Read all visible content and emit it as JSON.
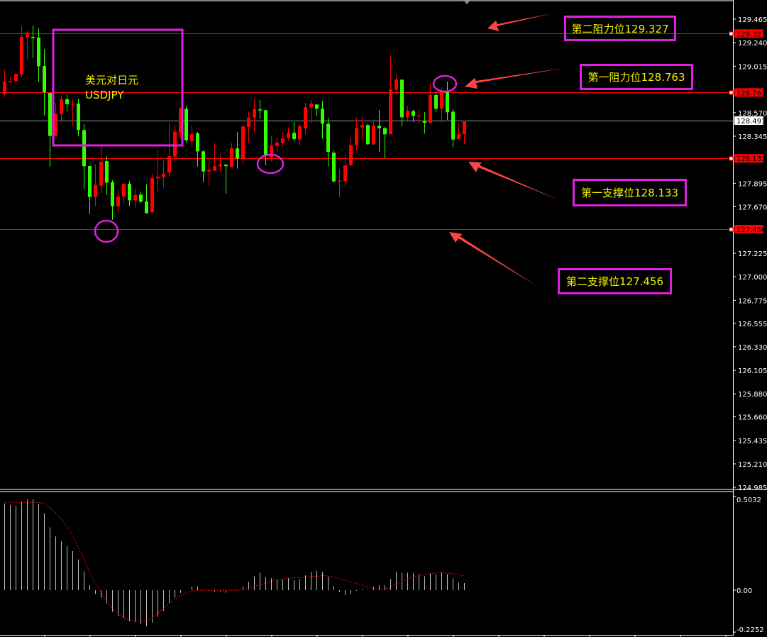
{
  "chart_data": [
    {
      "type": "candlestick",
      "title": "美元对日元",
      "symbol": "USDJPY",
      "ylim": [
        124.985,
        129.465
      ],
      "y_ticks": [
        "129.465",
        "129.240",
        "129.015",
        "128.570",
        "128.345",
        "127.895",
        "127.670",
        "127.225",
        "127.000",
        "126.775",
        "126.555",
        "126.330",
        "126.105",
        "125.880",
        "125.660",
        "125.435",
        "125.210",
        "124.985"
      ],
      "bullish_color": "#ff0000",
      "bearish_color": "#33ff00",
      "current_price": {
        "value": 128.491,
        "label": "128.491",
        "color": "#8a94a6"
      },
      "levels": [
        {
          "value": 129.327,
          "label": "129.327",
          "annotation": "第二阻力位129.327",
          "color": "#ff0000"
        },
        {
          "value": 128.763,
          "label": "128.763",
          "annotation": "第一阻力位128.763",
          "color": "#ff0000"
        },
        {
          "value": 128.133,
          "label": "128.133",
          "annotation": "第一支撑位128.133",
          "color": "#ff0000"
        },
        {
          "value": 127.456,
          "label": "127.456",
          "annotation": "第二支撑位127.456",
          "color": "#ff0000"
        }
      ],
      "ohlc_fields": [
        "open",
        "high",
        "low",
        "close"
      ],
      "candles": [
        [
          128.747,
          128.976,
          128.72,
          128.867
        ],
        [
          128.863,
          128.908,
          128.856,
          128.872
        ],
        [
          128.874,
          128.942,
          128.856,
          128.942
        ],
        [
          128.935,
          129.399,
          128.906,
          129.297
        ],
        [
          129.29,
          129.354,
          129.082,
          129.336
        ],
        [
          129.295,
          129.403,
          129.094,
          129.284
        ],
        [
          129.288,
          129.376,
          128.863,
          129.014
        ],
        [
          129.017,
          129.179,
          128.544,
          128.766
        ],
        [
          128.759,
          128.759,
          128.053,
          128.347
        ],
        [
          128.347,
          128.664,
          128.347,
          128.562
        ],
        [
          128.555,
          128.738,
          128.483,
          128.698
        ],
        [
          128.698,
          128.743,
          128.58,
          128.652
        ],
        [
          128.65,
          128.698,
          128.444,
          128.657
        ],
        [
          128.657,
          128.704,
          128.347,
          128.404
        ],
        [
          128.404,
          128.46,
          127.838,
          128.058
        ],
        [
          128.06,
          128.06,
          127.601,
          127.763
        ],
        [
          127.763,
          128.076,
          127.675,
          127.879
        ],
        [
          127.872,
          128.275,
          127.804,
          128.101
        ],
        [
          128.107,
          128.155,
          127.782,
          127.901
        ],
        [
          127.904,
          127.924,
          127.545,
          127.675
        ],
        [
          127.675,
          127.836,
          127.616,
          127.768
        ],
        [
          127.766,
          127.899,
          127.702,
          127.89
        ],
        [
          127.89,
          127.917,
          127.675,
          127.732
        ],
        [
          127.732,
          127.843,
          127.657,
          127.782
        ],
        [
          127.786,
          127.816,
          127.709,
          127.718
        ],
        [
          127.721,
          127.883,
          127.607,
          127.607
        ],
        [
          127.616,
          127.985,
          127.616,
          127.944
        ],
        [
          127.942,
          128.216,
          127.82,
          127.958
        ],
        [
          127.953,
          128.114,
          127.854,
          127.985
        ],
        [
          127.997,
          128.481,
          127.956,
          128.155
        ],
        [
          128.15,
          128.453,
          128.11,
          128.388
        ],
        [
          128.381,
          128.619,
          128.324,
          128.612
        ],
        [
          128.607,
          128.637,
          128.286,
          128.306
        ],
        [
          128.297,
          128.444,
          128.239,
          128.365
        ],
        [
          128.372,
          128.386,
          128.053,
          128.2
        ],
        [
          128.2,
          128.209,
          127.906,
          128.008
        ],
        [
          128.008,
          128.107,
          127.865,
          128.024
        ],
        [
          128.015,
          128.277,
          128.015,
          128.06
        ],
        [
          128.055,
          128.168,
          128.008,
          128.078
        ],
        [
          128.073,
          128.073,
          127.797,
          128.058
        ],
        [
          128.049,
          128.277,
          128.046,
          128.229
        ],
        [
          128.228,
          128.386,
          128.035,
          128.132
        ],
        [
          128.132,
          128.445,
          128.076,
          128.438
        ],
        [
          128.433,
          128.58,
          128.28,
          128.522
        ],
        [
          128.524,
          128.705,
          128.381,
          128.603
        ],
        [
          128.601,
          128.691,
          128.51,
          128.592
        ],
        [
          128.594,
          128.596,
          128.065,
          128.155
        ],
        [
          128.144,
          128.352,
          128.105,
          128.257
        ],
        [
          128.252,
          128.332,
          128.196,
          128.284
        ],
        [
          128.28,
          128.386,
          128.239,
          128.322
        ],
        [
          128.325,
          128.427,
          128.307,
          128.379
        ],
        [
          128.377,
          128.481,
          128.302,
          128.318
        ],
        [
          128.313,
          128.467,
          128.252,
          128.44
        ],
        [
          128.42,
          128.664,
          128.365,
          128.623
        ],
        [
          128.619,
          128.691,
          128.467,
          128.657
        ],
        [
          128.648,
          128.653,
          128.537,
          128.608
        ],
        [
          128.608,
          128.684,
          128.32,
          128.465
        ],
        [
          128.465,
          128.522,
          128.053,
          128.194
        ],
        [
          128.187,
          128.207,
          127.9,
          127.913
        ],
        [
          127.913,
          128.031,
          127.764,
          127.92
        ],
        [
          127.913,
          128.171,
          127.859,
          128.065
        ],
        [
          128.067,
          128.332,
          128.06,
          128.261
        ],
        [
          128.259,
          128.522,
          128.205,
          128.424
        ],
        [
          128.429,
          128.528,
          128.318,
          128.451
        ],
        [
          128.451,
          128.465,
          128.261,
          128.268
        ],
        [
          128.268,
          128.485,
          128.257,
          128.445
        ],
        [
          128.445,
          128.596,
          128.196,
          128.422
        ],
        [
          128.422,
          128.433,
          128.132,
          128.363
        ],
        [
          128.363,
          129.112,
          128.363,
          128.793
        ],
        [
          128.788,
          128.936,
          128.743,
          128.888
        ],
        [
          128.886,
          128.886,
          128.438,
          128.526
        ],
        [
          128.524,
          128.635,
          128.494,
          128.589
        ],
        [
          128.585,
          128.596,
          128.483,
          128.54
        ],
        [
          128.535,
          128.596,
          128.46,
          128.542
        ],
        [
          128.492,
          128.574,
          128.37,
          128.472
        ],
        [
          128.472,
          128.845,
          128.472,
          128.739
        ],
        [
          128.739,
          128.759,
          128.578,
          128.608
        ],
        [
          128.608,
          128.811,
          128.476,
          128.777
        ],
        [
          128.766,
          128.868,
          128.501,
          128.574
        ],
        [
          128.58,
          128.608,
          128.241,
          128.313
        ],
        [
          128.318,
          128.467,
          128.313,
          128.365
        ],
        [
          128.363,
          128.494,
          128.273,
          128.491
        ]
      ]
    },
    {
      "type": "bar+line",
      "ylim": [
        -0.2252,
        0.5032
      ],
      "y_ticks": [
        "0.5032",
        "0.00",
        "-0.2252"
      ],
      "histogram_color": "#c0c0c0",
      "signal_color": "#ff0000",
      "histogram": [
        0.466,
        0.458,
        0.454,
        0.476,
        0.488,
        0.488,
        0.463,
        0.413,
        0.338,
        0.289,
        0.263,
        0.237,
        0.21,
        0.165,
        0.101,
        0.026,
        -0.02,
        -0.041,
        -0.07,
        -0.116,
        -0.139,
        -0.149,
        -0.167,
        -0.173,
        -0.183,
        -0.194,
        -0.175,
        -0.143,
        -0.111,
        -0.068,
        -0.04,
        -0.015,
        0.0,
        0.019,
        0.019,
        0.003,
        -0.005,
        -0.01,
        -0.008,
        -0.014,
        0.003,
        0.003,
        0.019,
        0.045,
        0.075,
        0.094,
        0.071,
        0.064,
        0.056,
        0.056,
        0.064,
        0.053,
        0.06,
        0.079,
        0.098,
        0.105,
        0.098,
        0.071,
        0.023,
        -0.008,
        -0.026,
        -0.021,
        -0.004,
        0.006,
        0.003,
        0.019,
        0.026,
        0.026,
        0.06,
        0.098,
        0.094,
        0.094,
        0.09,
        0.086,
        0.075,
        0.09,
        0.086,
        0.094,
        0.086,
        0.064,
        0.041,
        0.038
      ],
      "signal": [
        0.472,
        0.472,
        0.472,
        0.472,
        0.472,
        0.472,
        0.472,
        0.466,
        0.441,
        0.416,
        0.384,
        0.341,
        0.29,
        0.228,
        0.165,
        0.096,
        0.04,
        -0.01,
        -0.06,
        -0.098,
        -0.129,
        -0.148,
        -0.16,
        -0.167,
        -0.167,
        -0.16,
        -0.148,
        -0.123,
        -0.098,
        -0.073,
        -0.048,
        -0.029,
        -0.014,
        -0.005,
        -0.003,
        -0.001,
        -0.001,
        -0.001,
        -0.001,
        -0.001,
        -0.001,
        -0.001,
        0.003,
        0.009,
        0.021,
        0.03,
        0.04,
        0.049,
        0.056,
        0.061,
        0.065,
        0.066,
        0.068,
        0.07,
        0.073,
        0.075,
        0.078,
        0.076,
        0.07,
        0.063,
        0.054,
        0.045,
        0.035,
        0.025,
        0.015,
        0.008,
        0.003,
        0.005,
        0.018,
        0.034,
        0.049,
        0.061,
        0.07,
        0.078,
        0.084,
        0.089,
        0.093,
        0.094,
        0.091,
        0.088,
        0.083,
        0.078
      ]
    }
  ],
  "annotations": {
    "title_box": {
      "line1": "美元对日元",
      "line2": "USDJPY"
    },
    "highlight_color": "#e020e0",
    "arrow_color": "#ff4444",
    "text_color": "#f0f000"
  }
}
